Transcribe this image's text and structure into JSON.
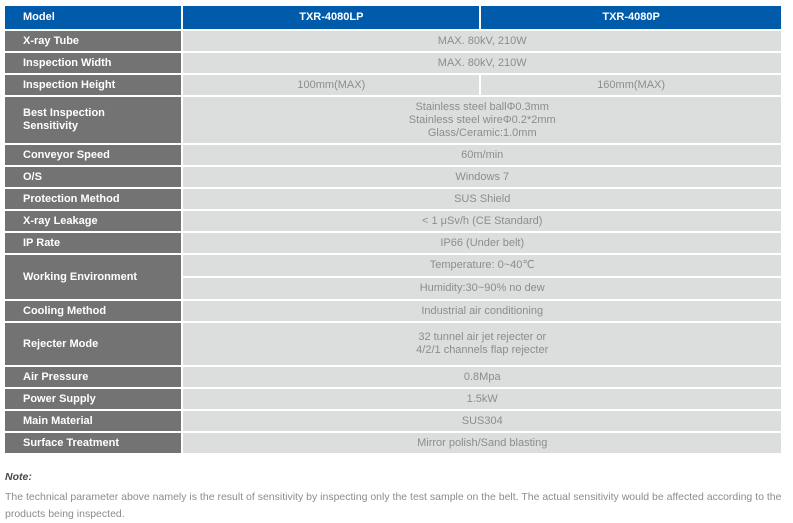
{
  "colors": {
    "header_bg": "#005BAB",
    "label_bg": "#737373",
    "value_bg": "#DCDEDE",
    "header_text": "#FFFFFF",
    "value_text": "#8C8C8C"
  },
  "table": {
    "header": {
      "col0": "Model",
      "col1": "TXR-4080LP",
      "col2": "TXR-4080P"
    },
    "rows": [
      {
        "label": "X-ray Tube",
        "value": "MAX. 80kV, 210W"
      },
      {
        "label": "Inspection Width",
        "value": "MAX. 80kV, 210W"
      },
      {
        "label": "Inspection Height",
        "value_lp": "100mm(MAX)",
        "value_p": "160mm(MAX)"
      },
      {
        "label": "Best Inspection Sensitivity",
        "lines": [
          "Stainless steel ballΦ0.3mm",
          "Stainless steel wireΦ0.2*2mm",
          "Glass/Ceramic:1.0mm"
        ]
      },
      {
        "label": "Conveyor Speed",
        "value": "60m/min"
      },
      {
        "label": "O/S",
        "value": "Windows 7"
      },
      {
        "label": "Protection Method",
        "value": "SUS Shield"
      },
      {
        "label": "X-ray Leakage",
        "value": "< 1 μSv/h (CE Standard)"
      },
      {
        "label": "IP Rate",
        "value": "IP66 (Under belt)"
      },
      {
        "label": "Working Environment",
        "value_top": "Temperature: 0~40℃",
        "value_bottom": "Humidity:30~90% no dew"
      },
      {
        "label": "Cooling Method",
        "value": "Industrial air conditioning"
      },
      {
        "label": "Rejecter Mode",
        "lines": [
          "32 tunnel air jet rejecter or",
          "4/2/1 channels flap rejecter"
        ]
      },
      {
        "label": "Air Pressure",
        "value": "0.8Mpa"
      },
      {
        "label": "Power Supply",
        "value": "1.5kW"
      },
      {
        "label": "Main Material",
        "value": "SUS304"
      },
      {
        "label": "Surface Treatment",
        "value": "Mirror polish/Sand blasting"
      }
    ]
  },
  "note": {
    "title": "Note:",
    "body": "The technical parameter above namely is the result of sensitivity by inspecting only the test sample on the belt. The actual sensitivity would be affected according to the products being inspected."
  }
}
